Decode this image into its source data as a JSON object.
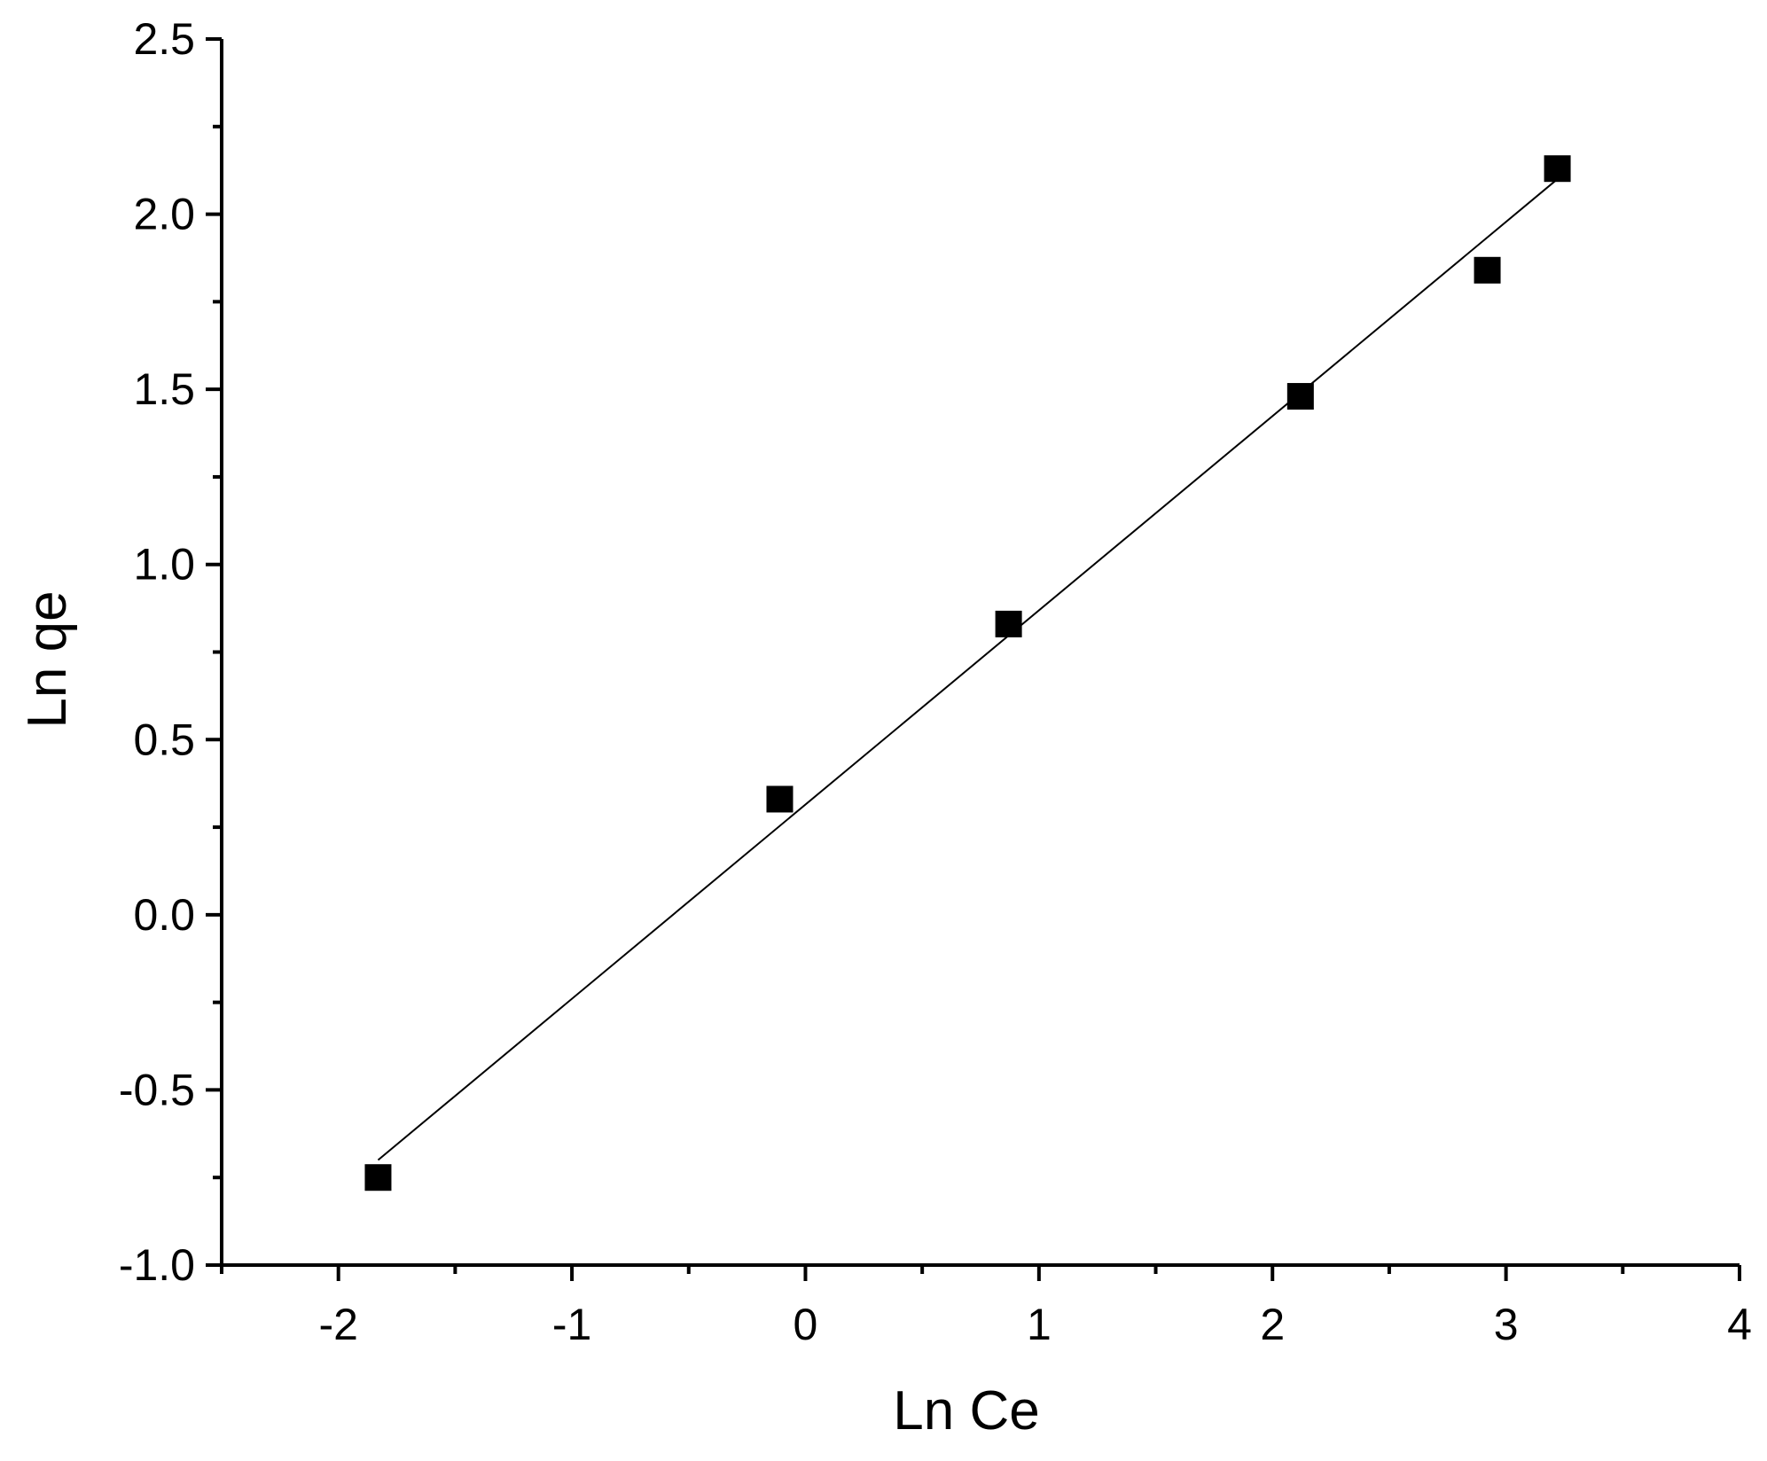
{
  "chart_data": {
    "type": "scatter",
    "title": "",
    "xlabel": "Ln Ce",
    "ylabel": "Ln qe",
    "xlim": [
      -2.5,
      4
    ],
    "ylim": [
      -1.0,
      2.5
    ],
    "x_ticks": [
      -2,
      -1,
      0,
      1,
      2,
      3,
      4
    ],
    "x_tick_labels": [
      "-2",
      "-1",
      "0",
      "1",
      "2",
      "3",
      "4"
    ],
    "x_minor_ticks": [
      -2.5,
      -1.5,
      -0.5,
      0.5,
      1.5,
      2.5,
      3.5
    ],
    "y_ticks": [
      -1.0,
      -0.5,
      0.0,
      0.5,
      1.0,
      1.5,
      2.0,
      2.5
    ],
    "y_tick_labels": [
      "-1.0",
      "-0.5",
      "0.0",
      "0.5",
      "1.0",
      "1.5",
      "2.0",
      "2.5"
    ],
    "y_minor_ticks": [
      -0.75,
      -0.25,
      0.25,
      0.75,
      1.25,
      1.75,
      2.25
    ],
    "grid": false,
    "legend": "none",
    "series": [
      {
        "marker": "square",
        "color": "#000000",
        "x": [
          -1.83,
          -0.11,
          0.87,
          2.12,
          2.92,
          3.22
        ],
        "y": [
          -0.75,
          0.33,
          0.83,
          1.48,
          1.84,
          2.13
        ]
      }
    ],
    "fit_line": {
      "color": "#000000",
      "x": [
        -1.83,
        3.22
      ],
      "y": [
        -0.7,
        2.1
      ]
    }
  }
}
